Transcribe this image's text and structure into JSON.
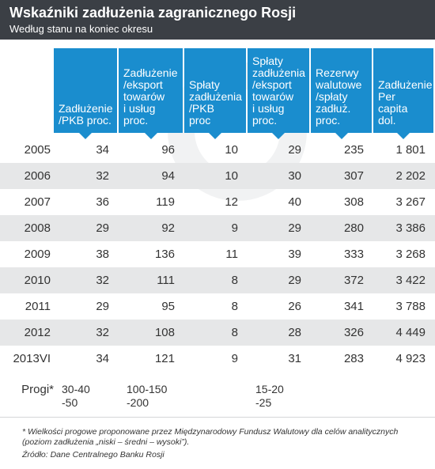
{
  "header": {
    "title": "Wskaźniki zadłużenia zagranicznego Rosji",
    "subtitle": "Według stanu na koniec okresu"
  },
  "colors": {
    "header_bg": "#3b3f45",
    "column_header": "#1a8dce",
    "row_stripe": "#e6e7e8"
  },
  "chart_data": {
    "type": "table",
    "columns": [
      "Zadłużenie\n/PKB proc.",
      "Zadłużenie\n/eksport\ntowarów\ni usług\nproc.",
      "Spłaty\nzadłużenia\n/PKB\nproc",
      "Spłaty\nzadłużenia\n/eksport\ntowarów\n i usług\nproc.",
      "Rezerwy\nwalutowe\n/spłaty\nzadłuż.\nproc.",
      "Zadłużenie\nPer\ncapita\ndol."
    ],
    "rows": [
      {
        "year": "2005",
        "values": [
          "34",
          "96",
          "10",
          "29",
          "235",
          "1 801"
        ]
      },
      {
        "year": "2006",
        "values": [
          "32",
          "94",
          "10",
          "30",
          "307",
          "2 202"
        ]
      },
      {
        "year": "2007",
        "values": [
          "36",
          "119",
          "12",
          "40",
          "308",
          "3 267"
        ]
      },
      {
        "year": "2008",
        "values": [
          "29",
          "92",
          "9",
          "29",
          "280",
          "3 386"
        ]
      },
      {
        "year": "2009",
        "values": [
          "38",
          "136",
          "11",
          "39",
          "333",
          "3 268"
        ]
      },
      {
        "year": "2010",
        "values": [
          "32",
          "111",
          "8",
          "29",
          "372",
          "3 422"
        ]
      },
      {
        "year": "2011",
        "values": [
          "29",
          "95",
          "8",
          "26",
          "341",
          "3 788"
        ]
      },
      {
        "year": "2012",
        "values": [
          "32",
          "108",
          "8",
          "28",
          "326",
          "4 449"
        ]
      },
      {
        "year": "2013VI",
        "values": [
          "34",
          "121",
          "9",
          "31",
          "283",
          "4 923"
        ]
      }
    ],
    "thresholds": {
      "label": "Progi*",
      "values": [
        "30-40\n-50",
        "100-150\n-200",
        "",
        "15-20\n-25",
        "",
        ""
      ]
    }
  },
  "footnote": {
    "note": "* Wielkości progowe proponowane przez Międzynarodowy Fundusz Walutowy dla celów analitycznych (poziom zadłużenia „niski – średni – wysoki”).",
    "source": "Źródło: Dane Centralnego Banku Rosji"
  }
}
